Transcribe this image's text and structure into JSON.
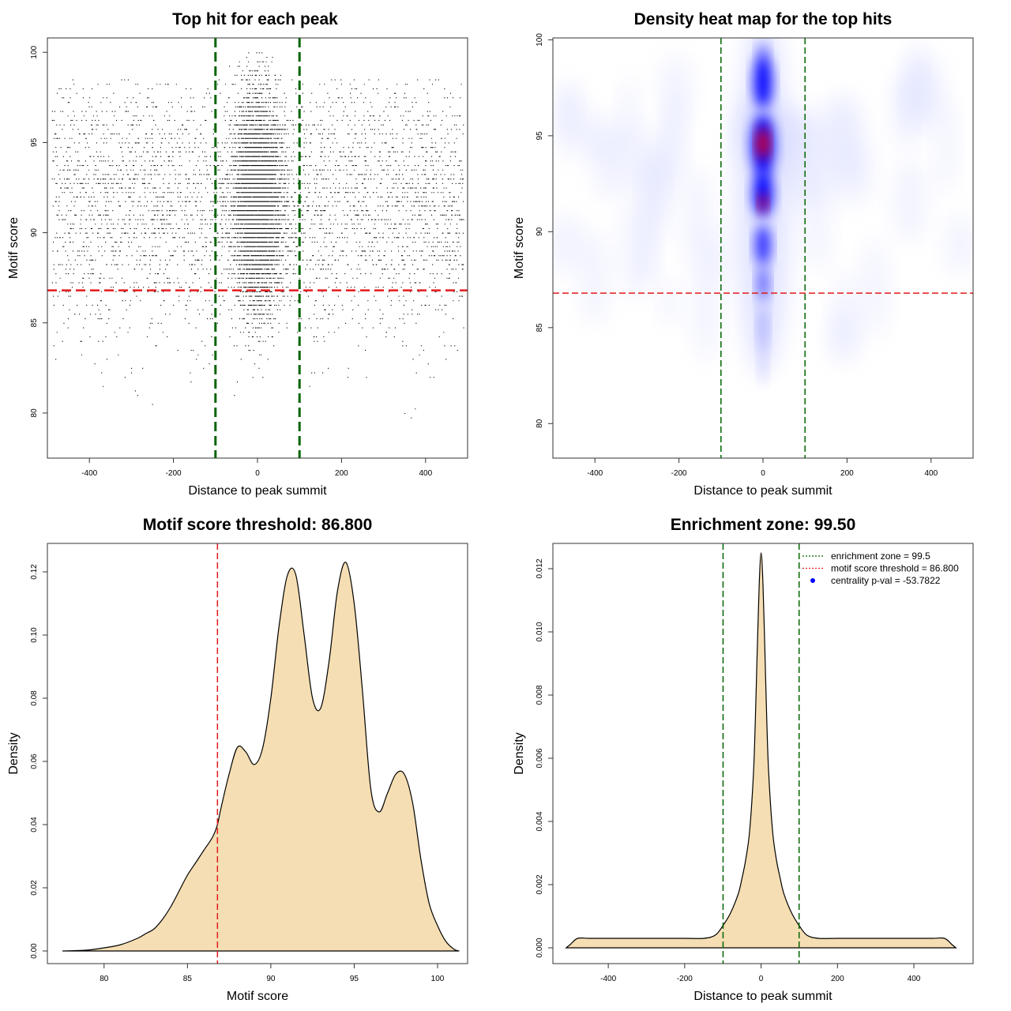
{
  "chart_data": [
    {
      "type": "scatter",
      "title": "Top hit for each peak",
      "xlabel": "Distance to peak summit",
      "ylabel": "Motif score",
      "xlim": [
        -500,
        500
      ],
      "ylim": [
        77.5,
        100.8
      ],
      "xticks": [
        -400,
        -200,
        0,
        200,
        400
      ],
      "yticks": [
        80,
        85,
        90,
        95,
        100
      ],
      "vlines": [
        -100,
        100
      ],
      "hline": 86.8,
      "colors": {
        "points": "#000000",
        "vline": "#006400",
        "hline": "#e31a1c"
      }
    },
    {
      "type": "heatmap",
      "title": "Density heat map for the top hits",
      "xlabel": "Distance to peak summit",
      "ylabel": "Motif score",
      "xlim": [
        -500,
        500
      ],
      "ylim": [
        78.2,
        100.1
      ],
      "xticks": [
        -400,
        -200,
        0,
        200,
        400
      ],
      "yticks": [
        80,
        85,
        90,
        95,
        100
      ],
      "vlines": [
        -100,
        100
      ],
      "hline": 86.8,
      "colors": {
        "low": "#ffffff",
        "mid": "#0000ff",
        "high": "#ff0000",
        "vline": "#006400",
        "hline": "#e31a1c"
      }
    },
    {
      "type": "area",
      "title": "Motif score threshold: 86.800",
      "xlabel": "Motif score",
      "ylabel": "Density",
      "xlim": [
        76.6,
        101.8
      ],
      "ylim": [
        -0.004,
        0.129
      ],
      "xticks": [
        80,
        85,
        90,
        95,
        100
      ],
      "yticks": [
        0.0,
        0.02,
        0.04,
        0.06,
        0.08,
        0.1,
        0.12
      ],
      "ytick_labels": [
        "0.00",
        "0.02",
        "0.04",
        "0.06",
        "0.08",
        "0.10",
        "0.12"
      ],
      "vline": 86.8,
      "x": [
        77.5,
        79,
        80,
        81,
        82,
        82.5,
        83,
        83.5,
        84,
        84.5,
        85,
        85.5,
        86,
        86.5,
        86.8,
        87,
        87.5,
        88,
        88.5,
        89,
        89.5,
        90,
        90.5,
        91,
        91.5,
        92,
        92.5,
        93,
        93.5,
        94,
        94.5,
        95,
        95.5,
        96,
        96.5,
        97,
        97.5,
        98,
        98.5,
        99,
        99.5,
        100,
        100.5,
        101,
        101.3
      ],
      "y": [
        0.0,
        0.0003,
        0.001,
        0.002,
        0.004,
        0.0055,
        0.007,
        0.01,
        0.014,
        0.019,
        0.024,
        0.028,
        0.032,
        0.036,
        0.04,
        0.045,
        0.056,
        0.0645,
        0.063,
        0.059,
        0.064,
        0.08,
        0.103,
        0.119,
        0.119,
        0.1,
        0.08,
        0.077,
        0.092,
        0.114,
        0.123,
        0.11,
        0.082,
        0.051,
        0.044,
        0.05,
        0.056,
        0.056,
        0.047,
        0.029,
        0.015,
        0.008,
        0.003,
        0.0005,
        0.0
      ],
      "colors": {
        "fill": "#f5deb3",
        "line": "#000000",
        "vline": "#e31a1c"
      }
    },
    {
      "type": "area",
      "title": "Enrichment zone: 99.50",
      "xlabel": "Distance to peak summit",
      "ylabel": "Density",
      "xlim": [
        -545,
        555
      ],
      "ylim": [
        -0.0005,
        0.0128
      ],
      "xticks": [
        -400,
        -200,
        0,
        200,
        400
      ],
      "yticks": [
        0.0,
        0.002,
        0.004,
        0.006,
        0.008,
        0.01,
        0.012
      ],
      "ytick_labels": [
        "0.000",
        "0.002",
        "0.004",
        "0.006",
        "0.008",
        "0.010",
        "0.012"
      ],
      "vlines": [
        -99.5,
        99.5
      ],
      "x": [
        -510,
        -500,
        -480,
        -450,
        -400,
        -350,
        -300,
        -250,
        -200,
        -150,
        -120,
        -100,
        -80,
        -60,
        -50,
        -40,
        -30,
        -20,
        -15,
        -10,
        -5,
        0,
        5,
        10,
        15,
        20,
        30,
        40,
        50,
        60,
        80,
        100,
        120,
        150,
        200,
        250,
        300,
        350,
        400,
        450,
        480,
        500,
        510
      ],
      "y": [
        0.0,
        0.0001,
        0.0003,
        0.0003,
        0.0003,
        0.0003,
        0.0003,
        0.0003,
        0.0003,
        0.0003,
        0.0004,
        0.0007,
        0.0011,
        0.0017,
        0.0022,
        0.0028,
        0.0037,
        0.0055,
        0.0072,
        0.0094,
        0.0115,
        0.0125,
        0.0115,
        0.0094,
        0.0072,
        0.0055,
        0.0037,
        0.0028,
        0.0022,
        0.0017,
        0.0011,
        0.0007,
        0.0004,
        0.0003,
        0.0003,
        0.0003,
        0.0003,
        0.0003,
        0.0003,
        0.0003,
        0.0003,
        0.0001,
        0.0
      ],
      "legend": {
        "position": "top-right",
        "entries": [
          {
            "label": "enrichment zone = 99.5",
            "style": "dotted",
            "color": "#006400"
          },
          {
            "label": "motif score threshold = 86.800",
            "style": "dotted",
            "color": "#e31a1c"
          },
          {
            "label": "centrality p-val = -53.7822",
            "style": "point",
            "color": "#0000ff"
          }
        ]
      },
      "colors": {
        "fill": "#f5deb3",
        "line": "#000000",
        "vline": "#006400"
      }
    }
  ]
}
